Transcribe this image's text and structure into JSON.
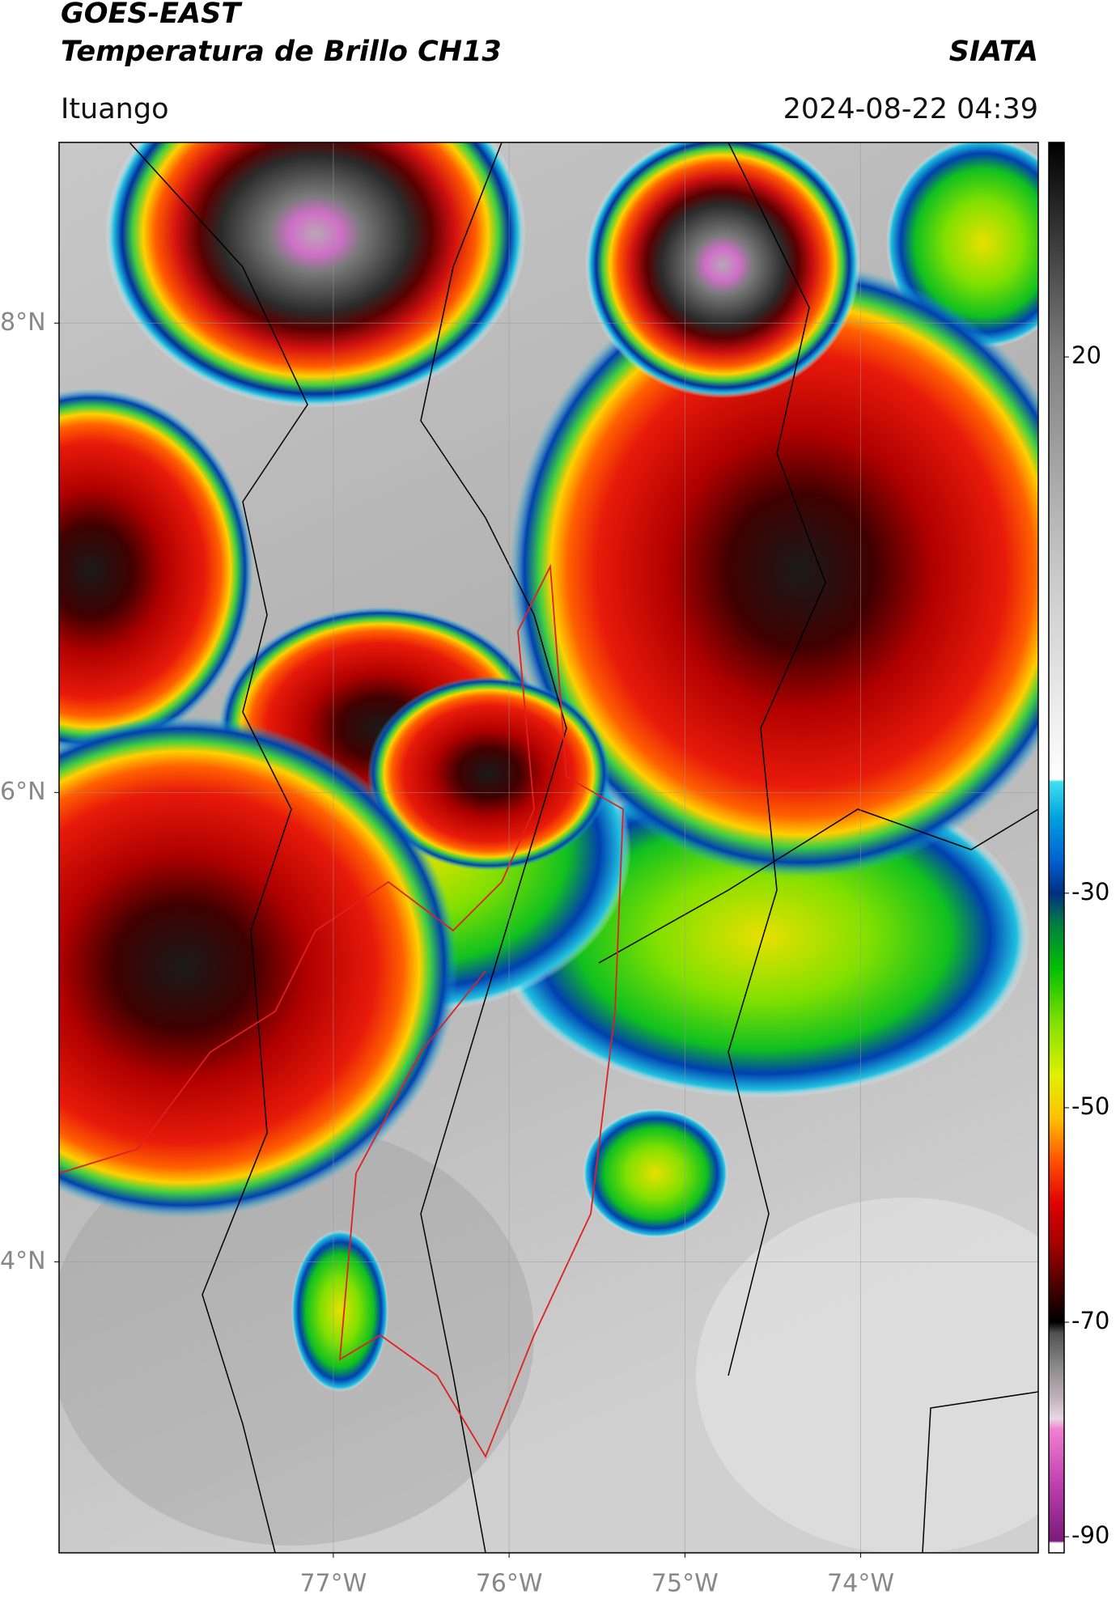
{
  "header": {
    "title": "GOES-EAST",
    "subtitle": "Temperatura de Brillo CH13",
    "source": "SIATA",
    "location": "Ituango",
    "timestamp": "2024-08-22 04:39"
  },
  "map": {
    "xlim": [
      -78.56,
      -72.99
    ],
    "ylim": [
      2.76,
      8.77
    ],
    "xticks": [
      {
        "value": -77,
        "label": "77°W"
      },
      {
        "value": -76,
        "label": "76°W"
      },
      {
        "value": -75,
        "label": "75°W"
      },
      {
        "value": -74,
        "label": "74°W"
      }
    ],
    "yticks": [
      {
        "value": 8,
        "label": "8°N"
      },
      {
        "value": 6,
        "label": "6°N"
      },
      {
        "value": 4,
        "label": "4°N"
      }
    ],
    "grid": true
  },
  "colorbar": {
    "lim": [
      -91.5,
      40
    ],
    "ticks": [
      20,
      -30,
      -50,
      -70,
      -90
    ],
    "colormap": [
      {
        "value": -91.5,
        "color": "#ffffff"
      },
      {
        "value": -90.6,
        "color": "#ffffff"
      },
      {
        "value": -90.4,
        "color": "#7a1a7a"
      },
      {
        "value": -85,
        "color": "#c040b0"
      },
      {
        "value": -80,
        "color": "#f080d0"
      },
      {
        "value": -79,
        "color": "#e8d8e4"
      },
      {
        "value": -77,
        "color": "#c0b0b8"
      },
      {
        "value": -74,
        "color": "#888888"
      },
      {
        "value": -71,
        "color": "#505050"
      },
      {
        "value": -70,
        "color": "#000000"
      },
      {
        "value": -67,
        "color": "#400000"
      },
      {
        "value": -63,
        "color": "#a00000"
      },
      {
        "value": -59,
        "color": "#e00000"
      },
      {
        "value": -55,
        "color": "#ff5000"
      },
      {
        "value": -51,
        "color": "#ffc000"
      },
      {
        "value": -47,
        "color": "#e0f000"
      },
      {
        "value": -42,
        "color": "#80e000"
      },
      {
        "value": -37,
        "color": "#00c000"
      },
      {
        "value": -33,
        "color": "#008040"
      },
      {
        "value": -30,
        "color": "#003080"
      },
      {
        "value": -27,
        "color": "#0060d0"
      },
      {
        "value": -23,
        "color": "#00a0e0"
      },
      {
        "value": -19.6,
        "color": "#40e0f0"
      },
      {
        "value": -19.4,
        "color": "#ffffff"
      },
      {
        "value": 0,
        "color": "#c8c8c8"
      },
      {
        "value": 20,
        "color": "#808080"
      },
      {
        "value": 40,
        "color": "#000000"
      }
    ]
  }
}
